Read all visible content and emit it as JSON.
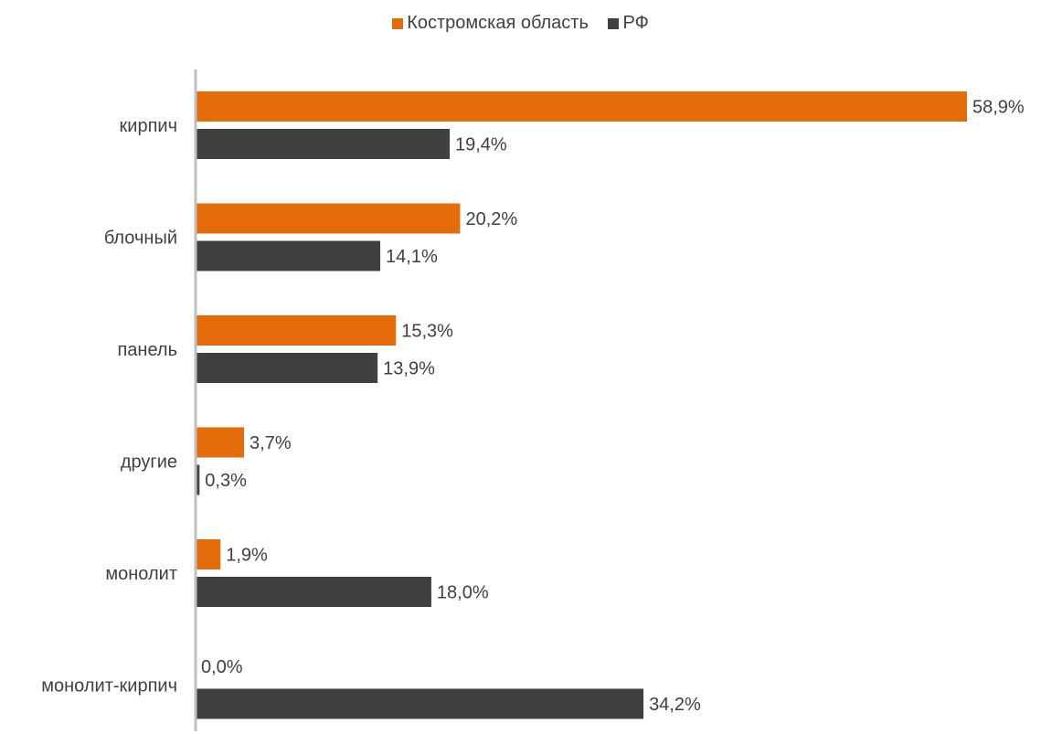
{
  "chart_data": {
    "type": "bar",
    "orientation": "horizontal",
    "categories": [
      "кирпич",
      "блочный",
      "панель",
      "другие",
      "монолит",
      "монолит-кирпич"
    ],
    "series": [
      {
        "name": "Костромская область",
        "color": "#E46C0A",
        "values": [
          58.9,
          20.2,
          15.3,
          3.7,
          1.9,
          0.0
        ],
        "labels": [
          "58,9%",
          "20,2%",
          "15,3%",
          "3,7%",
          "1,9%",
          "0,0%"
        ]
      },
      {
        "name": "РФ",
        "color": "#404040",
        "values": [
          19.4,
          14.1,
          13.9,
          0.3,
          18.0,
          34.2
        ],
        "labels": [
          "19,4%",
          "14,1%",
          "13,9%",
          "0,3%",
          "18,0%",
          "34,2%"
        ]
      }
    ],
    "xlim": [
      0,
      60
    ],
    "legend_position": "top-center",
    "grid": false,
    "axis_color": "#BFBFBF"
  }
}
